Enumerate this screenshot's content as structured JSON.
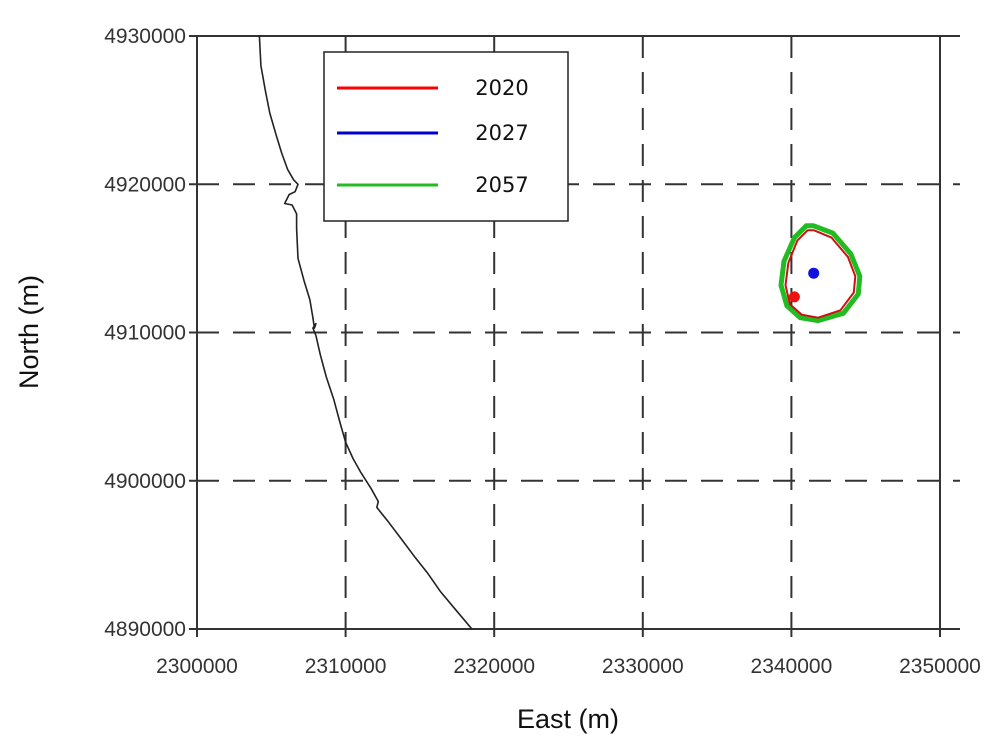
{
  "chart_data": {
    "type": "line",
    "xlabel": "East (m)",
    "ylabel": "North (m)",
    "xlim": [
      2300000,
      2350000
    ],
    "ylim": [
      4890000,
      4930000
    ],
    "x_ticks": [
      "2300000",
      "2310000",
      "2320000",
      "2330000",
      "2340000",
      "2350000"
    ],
    "y_ticks": [
      "4890000",
      "4900000",
      "4910000",
      "4920000",
      "4930000"
    ],
    "grid": true,
    "grid_style": "dashed",
    "legend_position": "top-center",
    "legend": [
      {
        "label": "2020",
        "color": "#ff0000"
      },
      {
        "label": "2027",
        "color": "#0000cc"
      },
      {
        "label": "2057",
        "color": "#22bb22"
      }
    ],
    "series": [
      {
        "color": "#222222",
        "x": [
          2304200,
          2304300,
          2304600,
          2304900,
          2305300,
          2305700,
          2306100,
          2306500,
          2306800,
          2306600,
          2306200,
          2305900,
          2306400,
          2306700,
          2306700,
          2306800,
          2307200,
          2307600,
          2307800,
          2307900,
          2308000,
          2307800,
          2308000,
          2308300,
          2308700,
          2309200,
          2309600,
          2310000,
          2310500,
          2311000,
          2311700,
          2312200,
          2312100,
          2312900,
          2313800,
          2314700,
          2315500,
          2316400,
          2317400,
          2318500
        ],
        "y": [
          4930000,
          4928000,
          4926300,
          4924800,
          4923400,
          4922100,
          4921000,
          4920300,
          4920000,
          4919500,
          4919300,
          4918700,
          4918600,
          4918000,
          4917000,
          4915000,
          4913500,
          4912200,
          4911000,
          4910300,
          4910600,
          4910300,
          4909800,
          4908500,
          4907000,
          4905500,
          4904000,
          4902600,
          4901500,
          4900600,
          4899500,
          4898600,
          4898200,
          4897200,
          4896000,
          4894800,
          4893800,
          4892500,
          4891300,
          4890000
        ]
      },
      {
        "name": "2057",
        "color": "#22bb22",
        "closed": true,
        "x": [
          2341500,
          2342800,
          2344000,
          2344600,
          2344500,
          2343500,
          2341800,
          2340600,
          2339700,
          2339300,
          2339500,
          2340200,
          2341000
        ],
        "y": [
          4917200,
          4916700,
          4915300,
          4913800,
          4912600,
          4911300,
          4910800,
          4911000,
          4911800,
          4913200,
          4914800,
          4916400,
          4917200
        ]
      },
      {
        "name": "2020",
        "color": "#cc1111",
        "closed": true,
        "x": [
          2341500,
          2342700,
          2343800,
          2344300,
          2344200,
          2343300,
          2341800,
          2340700,
          2339900,
          2339600,
          2339800,
          2340400,
          2341100
        ],
        "y": [
          4916900,
          4916400,
          4915100,
          4913800,
          4912700,
          4911500,
          4911000,
          4911200,
          4911900,
          4913200,
          4914700,
          4916200,
          4916900
        ]
      }
    ],
    "points": [
      {
        "name": "2020",
        "color": "#ee1111",
        "x": 2340200,
        "y": 4912400
      },
      {
        "name": "2027",
        "color": "#1111dd",
        "x": 2341500,
        "y": 4914000
      }
    ]
  }
}
